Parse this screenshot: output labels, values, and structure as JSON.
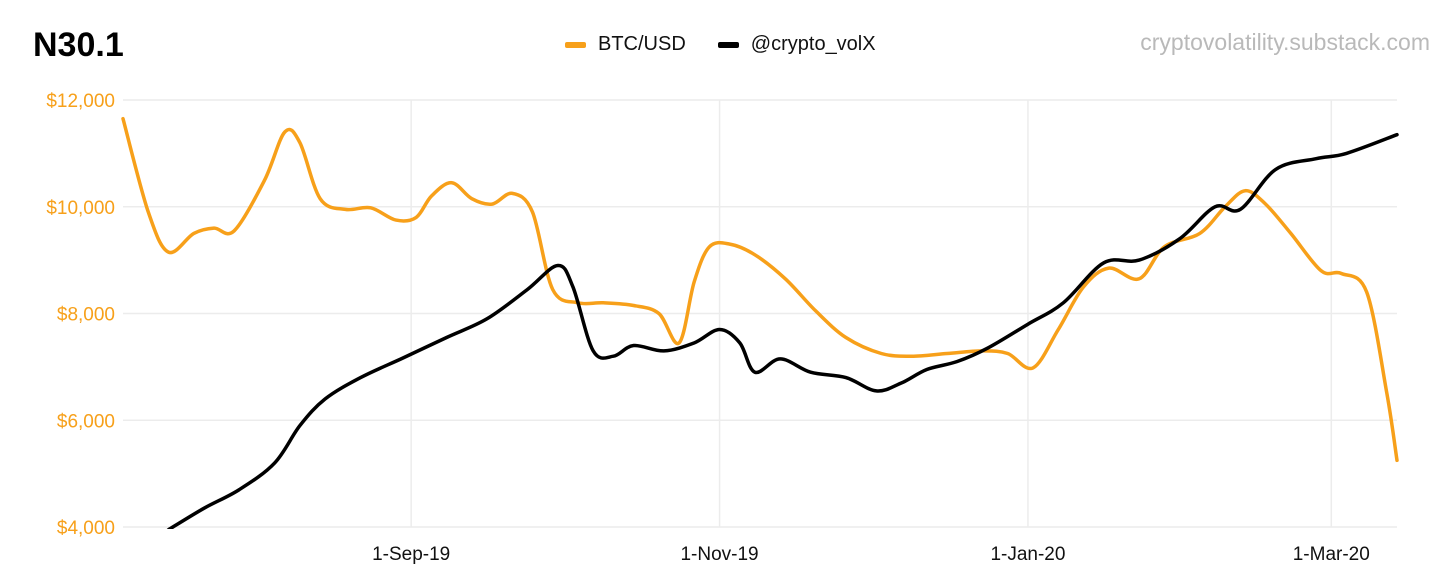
{
  "title": "N30.1",
  "source": "cryptovolatility.substack.com",
  "colors": {
    "btc": "#F7A01A",
    "vol": "#000000",
    "grid": "#ececec",
    "yaxis": "#F7A01A"
  },
  "legend": [
    {
      "label": "BTC/USD",
      "color": "#F7A01A"
    },
    {
      "label": "@crypto_volX",
      "color": "#000000"
    }
  ],
  "chart_data": {
    "type": "line",
    "x_range": [
      "2019-07-06",
      "2020-03-14"
    ],
    "xticks": [
      {
        "label": "1-Sep-19",
        "date": "2019-09-01"
      },
      {
        "label": "1-Nov-19",
        "date": "2019-11-01"
      },
      {
        "label": "1-Jan-20",
        "date": "2020-01-01"
      },
      {
        "label": "1-Mar-20",
        "date": "2020-03-01"
      }
    ],
    "yticks": [
      "$4,000",
      "$6,000",
      "$8,000",
      "$10,000",
      "$12,000"
    ],
    "ylim": [
      4000,
      12000
    ],
    "grid": true,
    "legend_position": "top-center",
    "series": [
      {
        "name": "BTC/USD",
        "color": "#F7A01A",
        "points": [
          [
            "2019-07-06",
            11650
          ],
          [
            "2019-07-11",
            9900
          ],
          [
            "2019-07-15",
            9150
          ],
          [
            "2019-07-20",
            9500
          ],
          [
            "2019-07-24",
            9600
          ],
          [
            "2019-07-28",
            9550
          ],
          [
            "2019-08-03",
            10500
          ],
          [
            "2019-08-07",
            11400
          ],
          [
            "2019-08-10",
            11200
          ],
          [
            "2019-08-14",
            10150
          ],
          [
            "2019-08-19",
            9950
          ],
          [
            "2019-08-24",
            9980
          ],
          [
            "2019-08-29",
            9750
          ],
          [
            "2019-09-02",
            9800
          ],
          [
            "2019-09-05",
            10200
          ],
          [
            "2019-09-09",
            10450
          ],
          [
            "2019-09-13",
            10150
          ],
          [
            "2019-09-17",
            10050
          ],
          [
            "2019-09-21",
            10250
          ],
          [
            "2019-09-25",
            9900
          ],
          [
            "2019-09-29",
            8450
          ],
          [
            "2019-10-04",
            8200
          ],
          [
            "2019-10-09",
            8200
          ],
          [
            "2019-10-15",
            8150
          ],
          [
            "2019-10-20",
            8000
          ],
          [
            "2019-10-24",
            7450
          ],
          [
            "2019-10-27",
            8600
          ],
          [
            "2019-10-30",
            9250
          ],
          [
            "2019-11-03",
            9300
          ],
          [
            "2019-11-08",
            9100
          ],
          [
            "2019-11-14",
            8650
          ],
          [
            "2019-11-20",
            8050
          ],
          [
            "2019-11-26",
            7550
          ],
          [
            "2019-12-03",
            7250
          ],
          [
            "2019-12-09",
            7200
          ],
          [
            "2019-12-16",
            7250
          ],
          [
            "2019-12-23",
            7300
          ],
          [
            "2019-12-28",
            7250
          ],
          [
            "2020-01-02",
            6980
          ],
          [
            "2020-01-07",
            7700
          ],
          [
            "2020-01-12",
            8500
          ],
          [
            "2020-01-17",
            8850
          ],
          [
            "2020-01-23",
            8650
          ],
          [
            "2020-01-28",
            9250
          ],
          [
            "2020-02-04",
            9500
          ],
          [
            "2020-02-09",
            10000
          ],
          [
            "2020-02-13",
            10300
          ],
          [
            "2020-02-17",
            10050
          ],
          [
            "2020-02-22",
            9500
          ],
          [
            "2020-02-28",
            8800
          ],
          [
            "2020-03-03",
            8750
          ],
          [
            "2020-03-08",
            8400
          ],
          [
            "2020-03-12",
            6500
          ],
          [
            "2020-03-14",
            5250
          ]
        ]
      },
      {
        "name": "@crypto_volX",
        "color": "#000000",
        "points": [
          [
            "2019-07-15",
            3950
          ],
          [
            "2019-07-22",
            4350
          ],
          [
            "2019-07-29",
            4700
          ],
          [
            "2019-08-05",
            5200
          ],
          [
            "2019-08-10",
            5900
          ],
          [
            "2019-08-15",
            6400
          ],
          [
            "2019-08-22",
            6800
          ],
          [
            "2019-08-30",
            7150
          ],
          [
            "2019-09-08",
            7550
          ],
          [
            "2019-09-16",
            7900
          ],
          [
            "2019-09-24",
            8450
          ],
          [
            "2019-09-30",
            8900
          ],
          [
            "2019-10-03",
            8500
          ],
          [
            "2019-10-07",
            7300
          ],
          [
            "2019-10-11",
            7200
          ],
          [
            "2019-10-15",
            7400
          ],
          [
            "2019-10-21",
            7300
          ],
          [
            "2019-10-27",
            7450
          ],
          [
            "2019-11-01",
            7700
          ],
          [
            "2019-11-05",
            7450
          ],
          [
            "2019-11-08",
            6900
          ],
          [
            "2019-11-13",
            7150
          ],
          [
            "2019-11-19",
            6900
          ],
          [
            "2019-11-26",
            6800
          ],
          [
            "2019-12-02",
            6550
          ],
          [
            "2019-12-07",
            6700
          ],
          [
            "2019-12-12",
            6950
          ],
          [
            "2019-12-18",
            7100
          ],
          [
            "2019-12-24",
            7350
          ],
          [
            "2020-01-01",
            7800
          ],
          [
            "2020-01-08",
            8200
          ],
          [
            "2020-01-16",
            8950
          ],
          [
            "2020-01-23",
            9000
          ],
          [
            "2020-01-31",
            9400
          ],
          [
            "2020-02-07",
            10000
          ],
          [
            "2020-02-12",
            9950
          ],
          [
            "2020-02-19",
            10700
          ],
          [
            "2020-02-27",
            10900
          ],
          [
            "2020-03-04",
            11000
          ],
          [
            "2020-03-14",
            11350
          ]
        ]
      }
    ]
  }
}
